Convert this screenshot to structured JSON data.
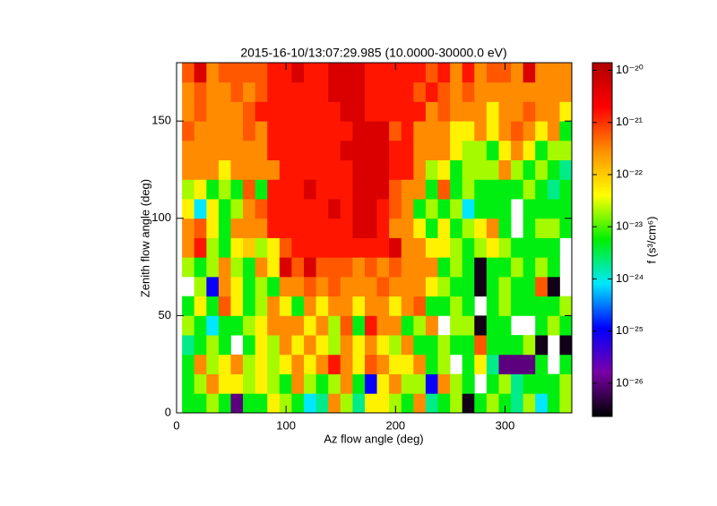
{
  "chart_data": {
    "type": "heatmap",
    "title": "2015-16-10/13:07:29.985 (10.0000-30000.0 eV)",
    "x_label": "Az flow angle (deg)",
    "y_label": "Zenith flow angle (deg)",
    "colorbar_label": "f (s³/cm⁶)",
    "xlim": [
      0,
      361
    ],
    "ylim": [
      0,
      180
    ],
    "xticks": [
      0,
      100,
      200,
      300
    ],
    "yticks": [
      0,
      50,
      100,
      150
    ],
    "xbins": [
      5,
      16.1,
      27.3,
      38.4,
      49.5,
      60.6,
      71.8,
      82.9,
      94,
      105.1,
      116.3,
      127.4,
      138.5,
      149.6,
      160.8,
      171.9,
      183,
      194.1,
      205.3,
      216.4,
      227.5,
      238.6,
      249.8,
      260.9,
      272,
      283.1,
      294.3,
      305.4,
      316.5,
      327.6,
      338.8,
      349.9,
      361
    ],
    "ybins": [
      0,
      10,
      20,
      30,
      40,
      50,
      60,
      70,
      80,
      90,
      100,
      110,
      120,
      130,
      140,
      150,
      160,
      170,
      180
    ],
    "zlim": [
      2.3e-27,
      1.4e-20
    ],
    "zscale": "log",
    "zticks": [
      {
        "value": 1e-20,
        "label": "10⁻²⁰"
      },
      {
        "value": 1e-21,
        "label": "10⁻²¹"
      },
      {
        "value": 1e-22,
        "label": "10⁻²²"
      },
      {
        "value": 1e-23,
        "label": "10⁻²³"
      },
      {
        "value": 1e-24,
        "label": "10⁻²⁴"
      },
      {
        "value": 1e-25,
        "label": "10⁻²⁵"
      },
      {
        "value": 1e-26,
        "label": "10⁻²⁶"
      }
    ],
    "colormap": [
      "#000000",
      "#7a00a8",
      "#0000ff",
      "#00e8ff",
      "#00f000",
      "#ffff00",
      "#ff9000",
      "#ff0000",
      "#b00000"
    ],
    "z": [
      [
        5e-24,
        5e-24,
        2e-23,
        5e-24,
        1e-26,
        5e-24,
        5e-24,
        5e-23,
        2e-23,
        5e-24,
        8e-25,
        2e-24,
        3e-22,
        2e-23,
        2e-24,
        5e-23,
        5e-23,
        2e-23,
        5e-24,
        3e-22,
        2e-24,
        5e-24,
        2e-23,
        3e-27,
        5e-24,
        2e-23,
        5e-24,
        2e-24,
        2e-23,
        8e-25,
        5e-24,
        2e-23
      ],
      [
        5e-24,
        2e-23,
        3e-22,
        5e-23,
        5e-23,
        2e-23,
        5e-23,
        2e-23,
        5e-24,
        3e-22,
        2e-23,
        5e-24,
        2e-23,
        3e-22,
        5e-24,
        1e-25,
        5e-23,
        3e-22,
        2e-23,
        2e-23,
        1e-25,
        3e-22,
        2e-23,
        5e-24,
        null,
        5e-24,
        2e-23,
        2e-24,
        5e-24,
        5e-24,
        5e-24,
        2e-23
      ],
      [
        5e-24,
        3e-22,
        2e-23,
        5e-23,
        3e-22,
        2e-23,
        5e-23,
        2e-23,
        5e-23,
        3e-22,
        5e-23,
        3e-22,
        1.5e-21,
        3e-22,
        5e-23,
        6e-22,
        3e-22,
        5e-23,
        5e-23,
        3e-22,
        5e-24,
        2e-23,
        null,
        5e-24,
        5e-23,
        2e-24,
        1e-26,
        1e-26,
        1e-26,
        5e-24,
        null,
        5e-24
      ],
      [
        2e-24,
        5e-24,
        2e-23,
        5e-24,
        null,
        5e-24,
        5e-23,
        2e-23,
        3e-22,
        5e-23,
        3e-22,
        5e-23,
        2e-23,
        3e-22,
        5e-23,
        3e-22,
        5e-23,
        2e-23,
        3e-22,
        5e-24,
        5e-24,
        2e-23,
        5e-24,
        5e-24,
        6e-22,
        5e-24,
        5e-24,
        5e-24,
        2e-23,
        3e-27,
        null,
        3e-27
      ],
      [
        2e-23,
        5e-24,
        8e-25,
        5e-24,
        5e-24,
        2e-23,
        5e-23,
        3e-22,
        3e-22,
        3e-22,
        5e-23,
        3e-22,
        2e-23,
        6e-22,
        5e-24,
        1.5e-21,
        3e-22,
        3e-22,
        5e-24,
        2e-23,
        3e-22,
        null,
        2e-23,
        2e-23,
        3e-27,
        5e-24,
        5e-24,
        null,
        null,
        5e-24,
        2e-23,
        5e-24
      ],
      [
        5e-24,
        5e-23,
        5e-24,
        6e-22,
        5e-23,
        5e-24,
        2e-23,
        3e-22,
        5e-23,
        5e-24,
        3e-22,
        5e-23,
        3e-22,
        3e-22,
        5e-23,
        3e-22,
        3e-22,
        5e-23,
        3e-22,
        6e-22,
        5e-24,
        5e-24,
        2e-23,
        5e-24,
        null,
        5e-24,
        2e-23,
        5e-24,
        5e-24,
        5e-24,
        5e-24,
        2e-23
      ],
      [
        null,
        2e-23,
        1e-25,
        3e-22,
        5e-23,
        5e-24,
        2e-23,
        5e-24,
        3e-22,
        3e-22,
        6e-22,
        3e-22,
        6e-22,
        3e-22,
        3e-22,
        3e-22,
        6e-22,
        3e-22,
        3e-22,
        3e-22,
        5e-23,
        2e-23,
        5e-24,
        5e-24,
        3e-27,
        5e-24,
        2e-23,
        5e-24,
        5e-24,
        6e-22,
        3e-27,
        null
      ],
      [
        2e-23,
        5e-24,
        2e-23,
        3e-22,
        2e-23,
        5e-24,
        3e-22,
        5e-23,
        5e-21,
        6e-22,
        5e-21,
        6e-22,
        6e-22,
        6e-22,
        3e-22,
        6e-22,
        3e-22,
        6e-22,
        3e-22,
        3e-22,
        3e-22,
        5e-24,
        2e-23,
        5e-24,
        3e-27,
        5e-24,
        5e-24,
        2e-23,
        5e-24,
        2e-23,
        5e-24,
        null
      ],
      [
        3e-22,
        1.5e-21,
        2e-23,
        5e-24,
        5e-23,
        1e-22,
        2e-23,
        5e-23,
        6e-22,
        1.5e-21,
        1.5e-21,
        1.5e-21,
        1.5e-21,
        1.5e-21,
        1.5e-21,
        1.5e-21,
        1.5e-21,
        5e-21,
        3e-22,
        3e-22,
        5e-23,
        5e-23,
        2e-23,
        5e-24,
        2e-23,
        5e-23,
        2e-23,
        5e-24,
        5e-24,
        5e-24,
        5e-24,
        null
      ],
      [
        3e-22,
        6e-22,
        5e-23,
        5e-24,
        3e-22,
        3e-22,
        3e-22,
        1.5e-21,
        1.5e-21,
        1.5e-21,
        1.5e-21,
        1.5e-21,
        1.5e-21,
        1.5e-21,
        5e-21,
        5e-21,
        1.5e-21,
        3e-22,
        3e-22,
        5e-23,
        5e-24,
        5e-23,
        5e-24,
        2e-23,
        5e-23,
        3e-22,
        5e-24,
        null,
        5e-24,
        2e-23,
        2e-23,
        5e-24
      ],
      [
        5e-23,
        8e-25,
        5e-23,
        5e-24,
        2e-23,
        3e-22,
        6e-22,
        1.5e-21,
        1.5e-21,
        1.5e-21,
        1.5e-21,
        1.5e-21,
        5e-21,
        1.5e-21,
        5e-21,
        5e-21,
        1.5e-21,
        6e-22,
        3e-22,
        5e-24,
        2e-23,
        5e-24,
        2e-23,
        8e-25,
        5e-24,
        5e-24,
        5e-24,
        null,
        5e-24,
        5e-24,
        5e-24,
        5e-24
      ],
      [
        2e-23,
        5e-23,
        5e-24,
        2e-23,
        5e-24,
        6e-22,
        5e-24,
        1.5e-21,
        1.5e-21,
        1.5e-21,
        5e-21,
        1.5e-21,
        1.5e-21,
        1.5e-21,
        5e-21,
        5e-21,
        5e-21,
        6e-22,
        3e-22,
        3e-22,
        5e-24,
        6e-22,
        5e-24,
        2e-23,
        5e-24,
        5e-24,
        5e-24,
        5e-24,
        2e-23,
        5e-24,
        2e-24,
        5e-24
      ],
      [
        3e-22,
        3e-22,
        3e-22,
        5e-23,
        3e-22,
        3e-22,
        3e-22,
        3e-22,
        1.5e-21,
        1.5e-21,
        1.5e-21,
        1.5e-21,
        1.5e-21,
        1.5e-21,
        5e-21,
        5e-21,
        5e-21,
        1.5e-21,
        1.5e-21,
        3e-22,
        2e-23,
        5e-23,
        5e-24,
        2e-23,
        2e-23,
        2e-23,
        3e-22,
        2e-23,
        5e-24,
        2e-23,
        5e-24,
        2e-24
      ],
      [
        3e-22,
        3e-22,
        3e-22,
        3e-22,
        3e-22,
        3e-22,
        3e-22,
        1.5e-21,
        1.5e-21,
        1.5e-21,
        1.5e-21,
        1.5e-21,
        1.5e-21,
        5e-21,
        5e-21,
        5e-21,
        5e-21,
        1.5e-21,
        1.5e-21,
        3e-22,
        3e-22,
        3e-22,
        5e-23,
        2e-23,
        2e-23,
        5e-24,
        5e-23,
        3e-22,
        5e-23,
        5e-24,
        2e-23,
        2e-23
      ],
      [
        6e-22,
        3e-22,
        3e-22,
        3e-22,
        3e-22,
        6e-22,
        3e-22,
        1.5e-21,
        1.5e-21,
        1.5e-21,
        1.5e-21,
        1.5e-21,
        1.5e-21,
        1.5e-21,
        5e-21,
        5e-21,
        5e-21,
        6e-22,
        1.5e-21,
        3e-22,
        3e-22,
        3e-22,
        5e-23,
        5e-23,
        3e-22,
        5e-23,
        3e-22,
        6e-22,
        3e-22,
        5e-23,
        3e-22,
        5e-24
      ],
      [
        3e-22,
        6e-22,
        3e-22,
        3e-22,
        3e-22,
        6e-22,
        1.5e-21,
        1.5e-21,
        1.5e-21,
        1.5e-21,
        1.5e-21,
        1.5e-21,
        1.5e-21,
        5e-21,
        5e-21,
        1.5e-21,
        1.5e-21,
        1.5e-21,
        1.5e-21,
        1.5e-21,
        3e-22,
        6e-22,
        3e-22,
        3e-22,
        3e-22,
        5e-23,
        3e-22,
        3e-22,
        6e-22,
        3e-22,
        3e-22,
        5e-23
      ],
      [
        3e-22,
        6e-22,
        3e-22,
        3e-22,
        6e-22,
        3e-22,
        6e-22,
        1.5e-21,
        1.5e-21,
        1.5e-21,
        1.5e-21,
        1.5e-21,
        5e-21,
        5e-21,
        5e-21,
        1.5e-21,
        1.5e-21,
        1.5e-21,
        1.5e-21,
        6e-22,
        1.5e-21,
        6e-22,
        3e-22,
        6e-22,
        3e-22,
        3e-22,
        3e-22,
        3e-22,
        3e-22,
        3e-22,
        3e-22,
        3e-22
      ],
      [
        6e-22,
        5e-21,
        3e-22,
        6e-22,
        6e-22,
        6e-22,
        6e-22,
        1.5e-21,
        1.5e-21,
        5e-21,
        1.5e-21,
        1.5e-21,
        5e-21,
        5e-21,
        5e-21,
        1.5e-21,
        1.5e-21,
        1.5e-21,
        1.5e-21,
        1.5e-21,
        6e-22,
        1.5e-21,
        3e-22,
        1.5e-21,
        3e-22,
        6e-22,
        6e-22,
        3e-22,
        5e-21,
        3e-22,
        3e-22,
        3e-22
      ]
    ]
  }
}
